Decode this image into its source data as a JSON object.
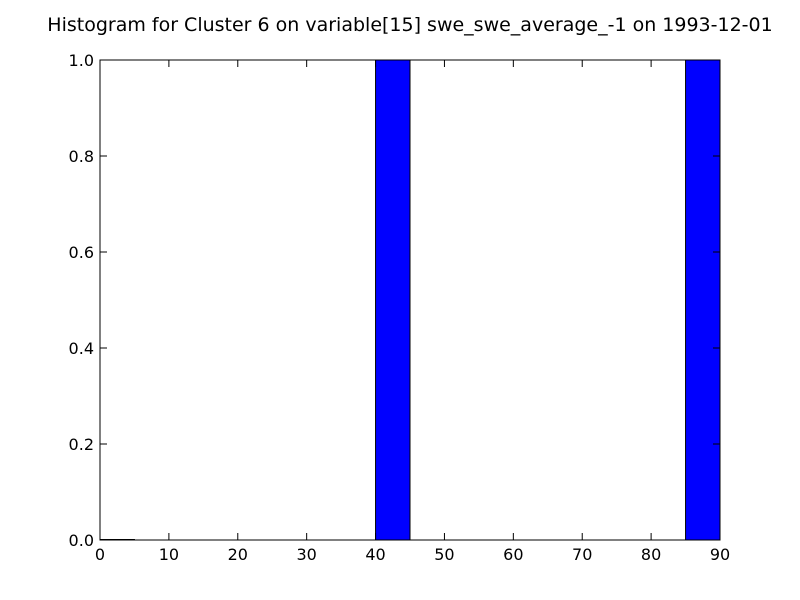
{
  "chart_data": {
    "type": "bar",
    "title": "Histogram for Cluster 6 on variable[15] swe_swe_average_-1 on 1993-12-01",
    "xlabel": "",
    "ylabel": "",
    "xlim": [
      0,
      90
    ],
    "ylim": [
      0.0,
      1.0
    ],
    "bin_width": 5,
    "bins": [
      {
        "start": 0,
        "end": 5,
        "value": 0.0
      },
      {
        "start": 40,
        "end": 45,
        "value": 1.0
      },
      {
        "start": 85,
        "end": 90,
        "value": 1.0
      }
    ],
    "xticks": [
      0,
      10,
      20,
      30,
      40,
      50,
      60,
      70,
      80,
      90
    ],
    "xtick_labels": [
      "0",
      "10",
      "20",
      "30",
      "40",
      "50",
      "60",
      "70",
      "80",
      "90"
    ],
    "yticks": [
      0.0,
      0.2,
      0.4,
      0.6,
      0.8,
      1.0
    ],
    "ytick_labels": [
      "0.0",
      "0.2",
      "0.4",
      "0.6",
      "0.8",
      "1.0"
    ],
    "grid": false,
    "legend": "none",
    "bar_color": "#0000ff",
    "edge_color": "#000000"
  }
}
